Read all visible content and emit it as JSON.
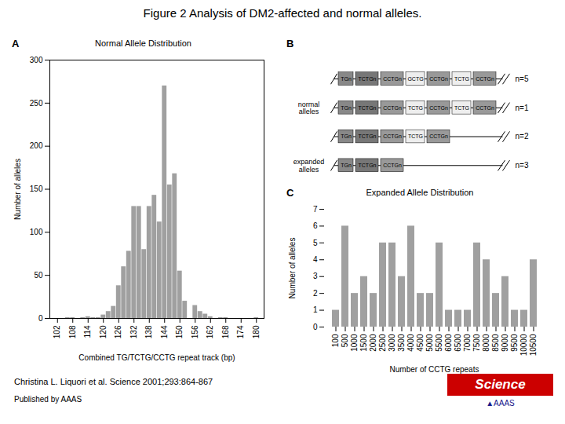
{
  "title": "Figure 2 Analysis of DM2-affected and normal alleles.",
  "annotations": [
    {
      "text": "Christina L. Liquori et al. Science 2001;293:864-867",
      "color": "#000000"
    },
    {
      "text": "Published by AAAS",
      "color": "#000000"
    },
    {
      "text": "Science",
      "color": "#ffffff",
      "background": "#cc0000"
    },
    {
      "text": "▲AAAS",
      "color": "#1a1a8c"
    }
  ],
  "chart_data": [
    {
      "type": "bar",
      "annotations": [
        "A"
      ],
      "title": "Normal Allele Distribution",
      "xlabel": "Combined TG/TCTG/CCTG repeat track (bp)",
      "ylabel": "Number of alleles",
      "x": [
        102,
        104,
        106,
        108,
        110,
        112,
        114,
        116,
        118,
        120,
        122,
        124,
        126,
        128,
        130,
        132,
        134,
        136,
        138,
        140,
        142,
        144,
        146,
        148,
        150,
        152,
        154,
        156,
        158,
        160,
        162,
        164,
        166,
        168,
        170,
        172,
        174,
        176,
        178,
        180
      ],
      "values": [
        0,
        0,
        1,
        1,
        0,
        1,
        2,
        1,
        1,
        4,
        8,
        14,
        38,
        60,
        78,
        130,
        130,
        80,
        130,
        143,
        112,
        270,
        155,
        168,
        55,
        20,
        0,
        15,
        8,
        5,
        2,
        0,
        1,
        1,
        0,
        0,
        0,
        0,
        0,
        1
      ],
      "color": "#a0a0a0",
      "xlim": [
        99,
        183
      ],
      "ylim": [
        0,
        300
      ],
      "xticks": [
        102,
        108,
        114,
        120,
        126,
        132,
        138,
        144,
        150,
        156,
        162,
        168,
        174,
        180
      ],
      "yticks": [
        0,
        50,
        100,
        150,
        200,
        250,
        300
      ],
      "grid": false
    },
    {
      "type": "schematic",
      "annotations": [
        "B"
      ],
      "groups": [
        {
          "name": "normal\nalleles",
          "series": [
            {
              "name": "n=5",
              "categories": [
                "TGn",
                "TCTGn",
                "CCTGn",
                "GCTG",
                "CCTGn",
                "TCTG",
                "CCTGn"
              ],
              "colors": [
                "#888888",
                "#777777",
                "#999999",
                "#eeeeee",
                "#999999",
                "#eeeeee",
                "#999999"
              ]
            },
            {
              "name": "n=1",
              "categories": [
                "TGn",
                "TCTGn",
                "CCTGn",
                "TCTG",
                "CCTGn",
                "TCTG",
                "CCTGn"
              ],
              "colors": [
                "#888888",
                "#777777",
                "#999999",
                "#eeeeee",
                "#999999",
                "#eeeeee",
                "#999999"
              ]
            },
            {
              "name": "n=2",
              "categories": [
                "TGn",
                "TCTGn",
                "CCTGn",
                "TCTG",
                "CCTGn"
              ],
              "colors": [
                "#888888",
                "#777777",
                "#999999",
                "#eeeeee",
                "#999999"
              ]
            }
          ]
        },
        {
          "name": "expanded\nalleles",
          "series": [
            {
              "name": "n=3",
              "categories": [
                "TGn",
                "TCTGn",
                "CCTGn"
              ],
              "colors": [
                "#888888",
                "#777777",
                "#999999"
              ]
            }
          ]
        }
      ]
    },
    {
      "type": "bar",
      "annotations": [
        "C"
      ],
      "title": "Expanded Allele Distribution",
      "xlabel": "Number of CCTG repeats",
      "ylabel": "Number of alleles",
      "categories": [
        "100",
        "500",
        "1000",
        "1500",
        "2000",
        "2500",
        "3000",
        "3500",
        "4000",
        "4500",
        "5000",
        "5500",
        "6000",
        "6500",
        "7000",
        "7500",
        "8000",
        "8500",
        "9000",
        "9500",
        "10000",
        "10500"
      ],
      "values": [
        1,
        6,
        2,
        3,
        2,
        5,
        5,
        3,
        6,
        2,
        2,
        5,
        1,
        1,
        1,
        5,
        4,
        2,
        3,
        1,
        1,
        4
      ],
      "color": "#a0a0a0",
      "ylim": [
        0,
        7
      ],
      "yticks": [
        0,
        1,
        2,
        3,
        4,
        5,
        6,
        7
      ],
      "grid": false
    }
  ]
}
